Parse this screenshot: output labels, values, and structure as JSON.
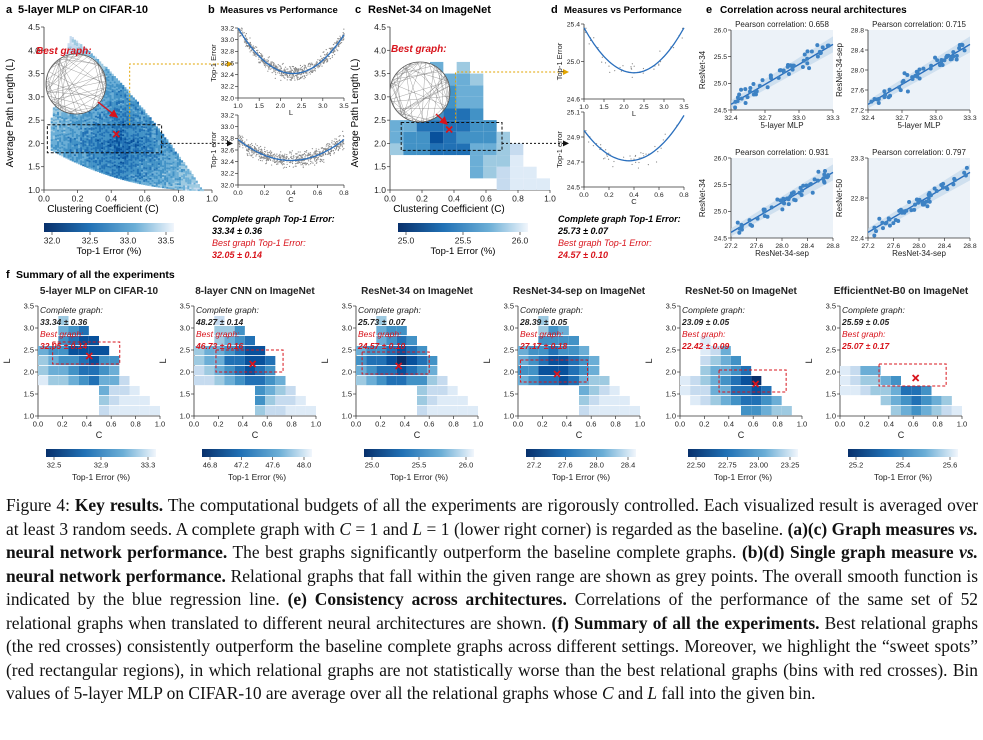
{
  "colors": {
    "accent_red": "#d8141c",
    "cmap_dark": "#08306b",
    "cmap_light": "#deebf7",
    "regression": "#2a6fbd",
    "points": "#3d82c4"
  },
  "panel_a": {
    "letter": "a",
    "title": "5-layer MLP on CIFAR-10",
    "best_label": "Best graph:",
    "xlabel": "Clustering Coefficient (C)",
    "ylabel": "Average Path Length (L)",
    "xticks": [
      "0.0",
      "0.2",
      "0.4",
      "0.6",
      "0.8",
      "1.0"
    ],
    "yticks": [
      "1.0",
      "1.5",
      "2.0",
      "2.5",
      "3.0",
      "3.5",
      "4.0",
      "4.5"
    ],
    "colorbar_ticks": [
      "32.0",
      "32.5",
      "33.0",
      "33.5"
    ],
    "colorbar_label": "Top-1 Error (%)",
    "complete_label": "Complete graph Top-1 Error:",
    "complete_value": "33.34 ± 0.36",
    "best_err_label": "Best graph Top-1 Error:",
    "best_err_value": "32.05 ± 0.14"
  },
  "panel_b": {
    "letter": "b",
    "title": "Measures vs Performance",
    "top_ylabel": "Top-1 Error",
    "top_xlabel": "L",
    "top_yticks": [
      "32.0",
      "32.2",
      "32.4",
      "32.6",
      "32.8",
      "33.0",
      "33.2"
    ],
    "top_xticks": [
      "1.0",
      "1.5",
      "2.0",
      "2.5",
      "3.0",
      "3.5"
    ],
    "bot_ylabel": "Top-1 error",
    "bot_xlabel": "C",
    "bot_yticks": [
      "32.0",
      "32.2",
      "32.4",
      "32.6",
      "32.8",
      "33.0",
      "33.2"
    ],
    "bot_xticks": [
      "0.0",
      "0.2",
      "0.4",
      "0.6",
      "0.8"
    ]
  },
  "panel_c": {
    "letter": "c",
    "title": "ResNet-34 on ImageNet",
    "best_label": "Best graph:",
    "xlabel": "Clustering Coefficient (C)",
    "ylabel": "Average Path Length (L)",
    "xticks": [
      "0.0",
      "0.2",
      "0.4",
      "0.6",
      "0.8",
      "1.0"
    ],
    "yticks": [
      "1.0",
      "1.5",
      "2.0",
      "2.5",
      "3.0",
      "3.5",
      "4.0",
      "4.5"
    ],
    "colorbar_ticks": [
      "25.0",
      "25.5",
      "26.0"
    ],
    "colorbar_label": "Top-1 Error (%)",
    "complete_label": "Complete graph Top-1 Error:",
    "complete_value": "25.73 ± 0.07",
    "best_err_label": "Best graph Top-1 Error:",
    "best_err_value": "24.57 ± 0.10"
  },
  "panel_d": {
    "letter": "d",
    "title": "Measures vs Performance",
    "top_ylabel": "Top-1 Error",
    "top_xlabel": "L",
    "top_yticks": [
      "24.6",
      "25.0",
      "25.4"
    ],
    "top_xticks": [
      "1.0",
      "1.5",
      "2.0",
      "2.5",
      "3.0",
      "3.5"
    ],
    "bot_ylabel": "Top-1 error",
    "bot_xlabel": "C",
    "bot_yticks": [
      "24.5",
      "24.7",
      "24.9",
      "25.1"
    ],
    "bot_xticks": [
      "0.0",
      "0.2",
      "0.4",
      "0.6",
      "0.8"
    ]
  },
  "panel_e": {
    "letter": "e",
    "title": "Correlation across neural architectures",
    "plots": [
      {
        "pearson": "Pearson correlation: 0.658",
        "xlabel": "5-layer MLP",
        "ylabel": "ResNet-34",
        "xticks": [
          "32.4",
          "32.7",
          "33.0",
          "33.3"
        ],
        "yticks": [
          "24.5",
          "25.0",
          "25.5",
          "26.0"
        ]
      },
      {
        "pearson": "Pearson correlation: 0.715",
        "xlabel": "5-layer MLP",
        "ylabel": "ResNet-34-sep",
        "xticks": [
          "32.4",
          "32.7",
          "33.0",
          "33.3"
        ],
        "yticks": [
          "27.2",
          "27.6",
          "28.0",
          "28.4",
          "28.8"
        ]
      },
      {
        "pearson": "Pearson correlation: 0.931",
        "xlabel": "ResNet-34-sep",
        "ylabel": "ResNet-34",
        "xticks": [
          "27.2",
          "27.6",
          "28.0",
          "28.4",
          "28.8"
        ],
        "yticks": [
          "24.5",
          "25.0",
          "25.5",
          "26.0"
        ]
      },
      {
        "pearson": "Pearson correlation: 0.797",
        "xlabel": "ResNet-34-sep",
        "ylabel": "ResNet-50",
        "xticks": [
          "27.2",
          "27.6",
          "28.0",
          "28.4",
          "28.8"
        ],
        "yticks": [
          "22.4",
          "22.8",
          "23.3"
        ]
      }
    ]
  },
  "panel_f": {
    "letter": "f",
    "title": "Summary of all the experiments",
    "xlabel": "C",
    "ylabel": "L",
    "xticks": [
      "0.0",
      "0.2",
      "0.4",
      "0.6",
      "0.8",
      "1.0"
    ],
    "yticks": [
      "1.0",
      "1.5",
      "2.0",
      "2.5",
      "3.0",
      "3.5"
    ],
    "colorbar_label": "Top-1 Error (%)",
    "complete_label": "Complete graph:",
    "best_label": "Best graph:",
    "experiments": [
      {
        "title": "5-layer MLP on CIFAR-10",
        "complete": "33.34 ± 0.36",
        "best": "32.05 ± 0.14",
        "cb": [
          "32.5",
          "32.9",
          "33.3"
        ]
      },
      {
        "title": "8-layer CNN on ImageNet",
        "complete": "48.27 ± 0.14",
        "best": "46.73 ± 0.16",
        "cb": [
          "46.8",
          "47.2",
          "47.6",
          "48.0"
        ]
      },
      {
        "title": "ResNet-34 on ImageNet",
        "complete": "25.73 ± 0.07",
        "best": "24.57 ± 0.10",
        "cb": [
          "25.0",
          "25.5",
          "26.0"
        ]
      },
      {
        "title": "ResNet-34-sep on ImageNet",
        "complete": "28.39 ± 0.05",
        "best": "27.17 ± 0.18",
        "cb": [
          "27.2",
          "27.6",
          "28.0",
          "28.4"
        ]
      },
      {
        "title": "ResNet-50 on ImageNet",
        "complete": "23.09 ± 0.05",
        "best": "22.42 ± 0.09",
        "cb": [
          "22.50",
          "22.75",
          "23.00",
          "23.25"
        ]
      },
      {
        "title": "EfficientNet-B0 on ImageNet",
        "complete": "25.59 ± 0.05",
        "best": "25.07 ± 0.17",
        "cb": [
          "25.2",
          "25.4",
          "25.6"
        ]
      }
    ]
  },
  "caption": {
    "fig_label": "Figure 4:",
    "key_results": "Key results.",
    "s1": "The computational budgets of all the experiments are rigorously controlled. Each visualized result is averaged over at least 3 random seeds. A complete graph with",
    "s1b": "and",
    "s1c": "(lower right corner) is regarded as the baseline.",
    "ac_label": "(a)(c)",
    "ac_bold": "Graph measures",
    "vs": "vs.",
    "ac_bold2": "neural network performance.",
    "ac_text": "The best graphs significantly outperform the baseline complete graphs.",
    "bd_label": "(b)(d)",
    "bd_bold": "Single graph measure",
    "bd_bold2": "neural network performance.",
    "bd_text": "Relational graphs that fall within the given range are shown as grey points. The overall smooth function is indicated by the blue regression line.",
    "e_bold": "(e) Consistency across architectures.",
    "e_text": "Correlations of the performance of the same set of 52 relational graphs when translated to different neural architectures are shown.",
    "f_bold": "(f) Summary of all the experiments.",
    "f_text": "Best relational graphs (the red crosses) consistently outperform the baseline complete graphs across different settings. Moreover, we highlight the “sweet spots” (red rectangular regions), in which relational graphs are not statistically worse than the best relational graphs (bins with red crosses). Bin values of 5-layer MLP on CIFAR-10 are average over all the relational graphs whose",
    "f_text2": "and",
    "f_text3": "fall into the given bin."
  }
}
